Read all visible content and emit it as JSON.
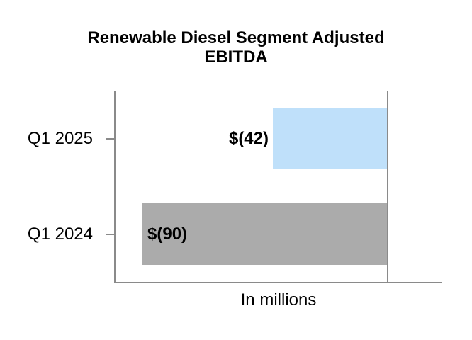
{
  "title": {
    "line1": "Renewable Diesel Segment Adjusted",
    "line2": "EBITDA"
  },
  "chart_data": {
    "type": "bar",
    "orientation": "horizontal",
    "title": "Renewable Diesel Segment Adjusted EBITDA",
    "categories": [
      "Q1 2025",
      "Q1 2024"
    ],
    "values": [
      -42,
      -90
    ],
    "data_labels": [
      "$(42)",
      "$(90)"
    ],
    "bar_colors": [
      "#BFE0FA",
      "#ABABAB"
    ],
    "xlabel": "In millions",
    "xlim": [
      -100,
      20
    ],
    "axis_color": "#8A8A8A",
    "grid": false,
    "legend": false
  }
}
